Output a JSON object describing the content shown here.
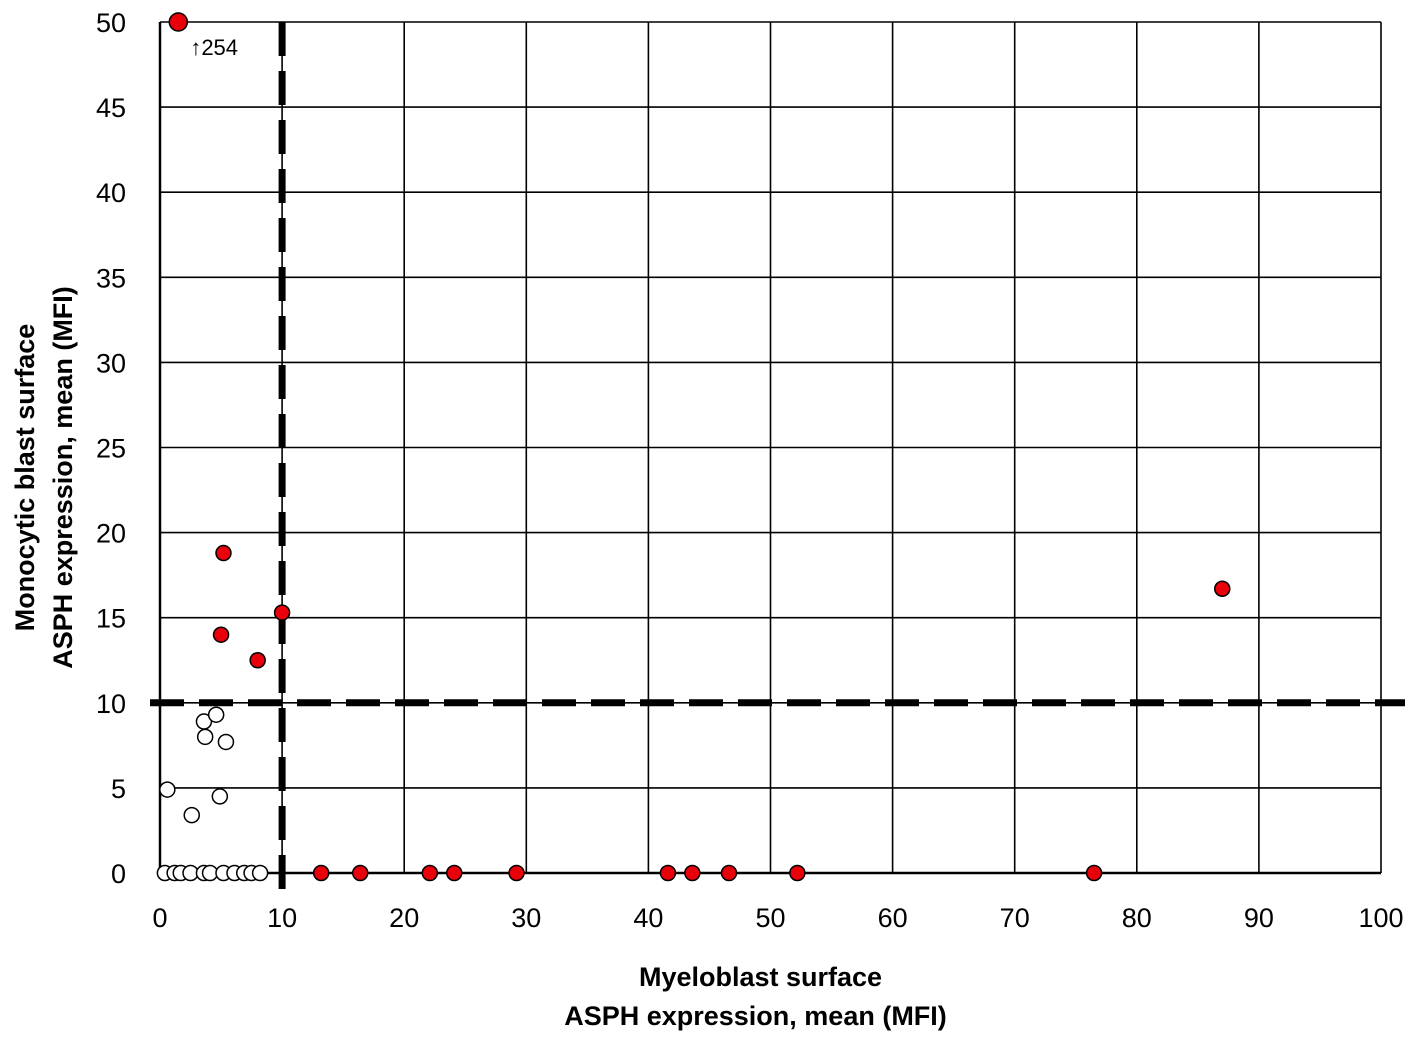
{
  "chart_data": {
    "type": "scatter",
    "title": "",
    "xlabel": [
      "Myeloblast surface",
      "ASPH expression, mean (MFI)"
    ],
    "ylabel": [
      "Monocytic blast surface",
      "ASPH expression, mean (MFI)"
    ],
    "xlim": [
      0,
      100
    ],
    "ylim": [
      0,
      50
    ],
    "xticks": [
      "0",
      "10",
      "20",
      "30",
      "40",
      "50",
      "60",
      "70",
      "80",
      "90",
      "100"
    ],
    "yticks": [
      "0",
      "5",
      "10",
      "15",
      "20",
      "25",
      "30",
      "35",
      "40",
      "45",
      "50"
    ],
    "grid": true,
    "thresholds": {
      "x": 10,
      "y": 10
    },
    "annotation": {
      "text": "↑254",
      "x": 1.5,
      "y": 50
    },
    "colors": {
      "positive": "#e8000b",
      "negative": "#ffffff",
      "edge": "#000000"
    },
    "series": [
      {
        "fill": "red",
        "points": [
          [
            1.5,
            50
          ],
          [
            5.2,
            18.8
          ],
          [
            5.0,
            14.0
          ],
          [
            8.0,
            12.5
          ],
          [
            10.0,
            15.3
          ],
          [
            87.0,
            16.7
          ],
          [
            13.2,
            0
          ],
          [
            16.4,
            0
          ],
          [
            22.1,
            0
          ],
          [
            24.1,
            0
          ],
          [
            29.2,
            0
          ],
          [
            41.6,
            0
          ],
          [
            43.6,
            0
          ],
          [
            46.6,
            0
          ],
          [
            52.2,
            0
          ],
          [
            76.5,
            0
          ]
        ]
      },
      {
        "fill": "white",
        "points": [
          [
            0.6,
            4.9
          ],
          [
            2.6,
            3.4
          ],
          [
            4.9,
            4.5
          ],
          [
            3.6,
            8.9
          ],
          [
            3.7,
            8.0
          ],
          [
            4.6,
            9.3
          ],
          [
            5.4,
            7.7
          ],
          [
            0.4,
            0
          ],
          [
            1.2,
            0
          ],
          [
            1.7,
            0
          ],
          [
            2.5,
            0
          ],
          [
            3.6,
            0
          ],
          [
            4.1,
            0
          ],
          [
            5.2,
            0
          ],
          [
            6.1,
            0
          ],
          [
            6.9,
            0
          ],
          [
            7.5,
            0
          ],
          [
            8.2,
            0
          ]
        ]
      }
    ]
  }
}
